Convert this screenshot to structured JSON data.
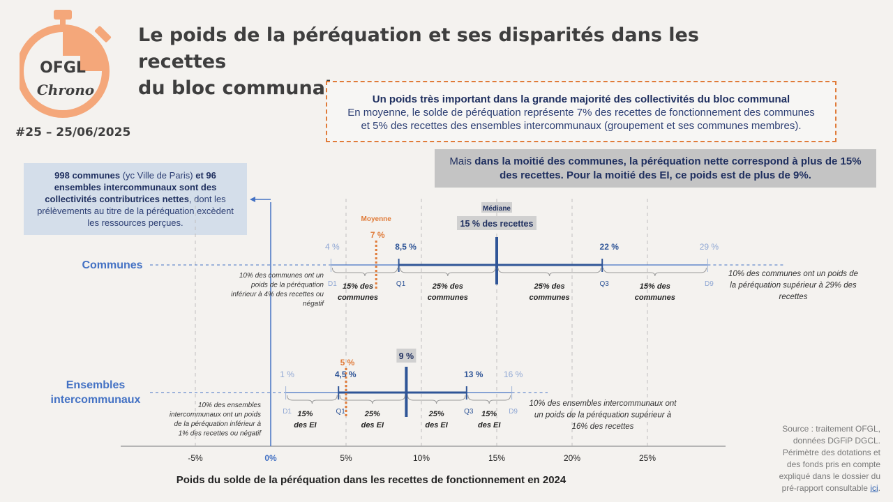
{
  "header": {
    "title_line1": "Le poids de la péréquation et ses disparités dans les recettes",
    "title_line2": "du bloc communal",
    "issue": "#25 – 25/06/2025"
  },
  "logo": {
    "name": "OFGL",
    "sub": "Chrono",
    "color": "#f4a77a"
  },
  "box_main": {
    "heading": "Un poids très important dans la grande majorité des collectivités du bloc communal",
    "line1": "En moyenne, le solde de péréquation représente 7% des recettes de fonctionnement des communes",
    "line2": "et 5% des recettes des ensembles intercommunaux (groupement et ses communes membres)."
  },
  "box_median": {
    "t1": "Mais ",
    "t2": "dans la moitié des communes, la péréquation nette correspond à plus de 15%",
    "t3": "des recettes. Pour la moitié des EI, ce poids est de plus de 9%."
  },
  "box_contrib": {
    "b1": "998 communes",
    "t1": " (yc Ville de Paris) ",
    "b2": "et 96 ensembles intercommunaux sont des collectivités contributrices nettes",
    "t2": ", dont les prélèvements au titre de la péréquation excèdent les ressources perçues."
  },
  "source": {
    "text": "Source : traitement OFGL, données DGFiP DGCL. Périmètre des dotations et des fonds pris en compte expliqué dans le dossier du pré-rapport consultable ",
    "link": "ici",
    "end": "."
  },
  "chart_data": {
    "type": "box-distribution",
    "xlabel": "Poids du solde de la péréquation dans les recettes de fonctionnement en 2024",
    "xlim": [
      -8,
      30
    ],
    "ticks": [
      -5,
      0,
      5,
      10,
      15,
      20,
      25
    ],
    "tick_labels": [
      "-5%",
      "0%",
      "5%",
      "10%",
      "15%",
      "20%",
      "25%"
    ],
    "mean_title": "Moyenne",
    "median_title": "Médiane",
    "colors": {
      "primary": "#4472c4",
      "dark": "#2f5597",
      "accent": "#e07b39",
      "grid": "#bfbfbf"
    },
    "series": [
      {
        "name": "Communes",
        "values": {
          "d1": 4,
          "q1": 8.5,
          "median": 15,
          "q3": 22,
          "d9": 29,
          "mean": 7
        },
        "value_labels": {
          "d1": "4 %",
          "q1": "8,5 %",
          "median": "15 % des recettes",
          "q3": "22 %",
          "d9": "29 %",
          "mean": "7 %"
        },
        "point_labels": {
          "d1": "D1",
          "q1": "Q1",
          "q3": "Q3",
          "d9": "D9"
        },
        "segment_labels": [
          [
            "15% des",
            "communes"
          ],
          [
            "25% des",
            "communes"
          ],
          [
            "25% des",
            "communes"
          ],
          [
            "15% des",
            "communes"
          ]
        ],
        "low_note": [
          "10% des communes ont un",
          "poids de la péréquation",
          "inférieur à 4% des recettes ou",
          "négatif"
        ],
        "high_note": [
          "10% des communes ont un poids de",
          "la péréquation supérieur à 29% des",
          "recettes"
        ]
      },
      {
        "name": "Ensembles intercommunaux",
        "name_lines": [
          "Ensembles",
          "intercommunaux"
        ],
        "values": {
          "d1": 1,
          "q1": 4.5,
          "median": 9,
          "q3": 13,
          "d9": 16,
          "mean": 5
        },
        "value_labels": {
          "d1": "1 %",
          "q1": "4,5 %",
          "median": "9 %",
          "q3": "13 %",
          "d9": "16 %",
          "mean": "5 %"
        },
        "point_labels": {
          "d1": "D1",
          "q1": "Q1",
          "q3": "Q3",
          "d9": "D9"
        },
        "segment_labels": [
          [
            "15%",
            "des EI"
          ],
          [
            "25%",
            "des EI"
          ],
          [
            "25%",
            "des EI"
          ],
          [
            "15%",
            "des EI"
          ]
        ],
        "low_note": [
          "10% des ensembles",
          "intercommunaux ont un poids",
          "de la péréquation inférieur à",
          "1% des recettes ou négatif"
        ],
        "high_note": [
          "10% des ensembles intercommunaux ont",
          "un poids de la péréquation supérieur à",
          "16% des recettes"
        ]
      }
    ]
  }
}
